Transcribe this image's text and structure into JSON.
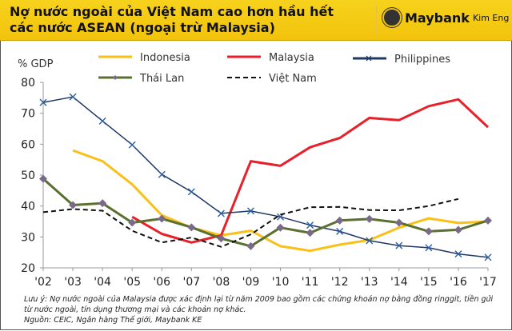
{
  "header": {
    "title": "Nợ nước ngoài của Việt Nam cao hơn hầu hết các nước ASEAN (ngoại trừ Malaysia)",
    "brand": "Maybank",
    "brand_sub": "Kim Eng"
  },
  "notes": {
    "line1": "Lưu ý: Nợ nước ngoài của Malaysia được xác định lại từ năm 2009 bao gồm các chứng khoán nợ bằng đồng ringgit, tiền gửi từ nước ngoài, tín dụng thương mại và các khoản nợ khác.",
    "source": "Nguồn: CEIC, Ngân hàng Thế giới, Maybank KE"
  },
  "chart_data": {
    "type": "line",
    "title": "Nợ nước ngoài của Việt Nam cao hơn hầu hết các nước ASEAN (ngoại trừ Malaysia)",
    "ylabel": "% GDP",
    "xlabel": "",
    "ylim": [
      20,
      80
    ],
    "yticks": [
      "20",
      "30",
      "40",
      "50",
      "60",
      "70",
      "80"
    ],
    "categories": [
      "'02",
      "'03",
      "'04",
      "'05",
      "'06",
      "'07",
      "'08",
      "'09",
      "'10",
      "'11",
      "'12",
      "'13",
      "'14",
      "'15",
      "'16",
      "'17"
    ],
    "legend": "top",
    "series": [
      {
        "name": "Indonesia",
        "color": "#f9c01a",
        "style": "solid",
        "marker": "none",
        "values": [
          null,
          58,
          54.5,
          47,
          37,
          33,
          30.5,
          32,
          27,
          25.5,
          27.5,
          29,
          33,
          36,
          34.5,
          35
        ]
      },
      {
        "name": "Malaysia",
        "color": "#e8202a",
        "style": "solid",
        "marker": "none",
        "values": [
          null,
          null,
          null,
          36.5,
          31,
          28.2,
          30.5,
          54.5,
          53,
          59,
          62,
          68.5,
          67.8,
          72.3,
          74.5,
          65.5
        ]
      },
      {
        "name": "Philippines",
        "color": "#1f3864",
        "style": "solid",
        "marker": "x",
        "values": [
          73.5,
          75.3,
          67.5,
          59.8,
          50.2,
          44.6,
          37.6,
          38.4,
          36.5,
          33.8,
          31.8,
          28.8,
          27.2,
          26.5,
          24.5,
          23.4
        ]
      },
      {
        "name": "Thái Lan",
        "color": "#5a7030",
        "style": "solid",
        "marker": "diamond",
        "values": [
          48.8,
          40.3,
          40.9,
          34.6,
          35.9,
          33.1,
          29.5,
          27,
          33,
          31.3,
          35.3,
          35.8,
          34.6,
          31.8,
          32.3,
          35.3
        ]
      },
      {
        "name": "Việt Nam",
        "color": "#111111",
        "style": "dashed",
        "marker": "none",
        "values": [
          38,
          39,
          38.5,
          32,
          28.2,
          29.8,
          26.8,
          30.8,
          37.2,
          39.6,
          39.7,
          38.7,
          38.6,
          40,
          42.3,
          null
        ]
      }
    ]
  }
}
